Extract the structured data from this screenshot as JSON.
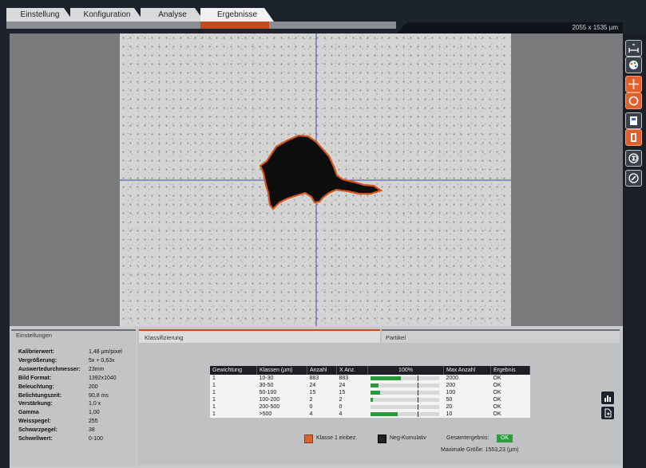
{
  "tabs": [
    {
      "label": "Einstellung"
    },
    {
      "label": "Konfiguration"
    },
    {
      "label": "Analyse"
    },
    {
      "label": "Ergebnisse"
    }
  ],
  "image_size": "2055 x 1535 µm",
  "toolbar": {
    "icons": [
      "measure-icon",
      "color-palette-icon",
      "crosshair-icon",
      "circle-icon",
      "export-image-icon",
      "film-icon",
      "3d-view-icon",
      "edit-icon"
    ]
  },
  "settings_panel": {
    "title": "Einstellungen",
    "rows": [
      {
        "key": "Kalibrierwert:",
        "value": "1,48 µm/pixel"
      },
      {
        "key": "Vergrößerung:",
        "value": "5x + 0,63x"
      },
      {
        "key": "Auswertedurchmesser:",
        "value": "23mm"
      },
      {
        "key": "Bild Format:",
        "value": "1392x1040"
      },
      {
        "key": "Beleuchtung:",
        "value": "200"
      },
      {
        "key": "Belichtungszeit:",
        "value": "90,8 ms"
      },
      {
        "key": "Verstärkung:",
        "value": "1,0 x"
      },
      {
        "key": "Gamma",
        "value": "1,00"
      },
      {
        "key": "Weisspegel:",
        "value": "255"
      },
      {
        "key": "Schwarzpegel:",
        "value": "38"
      },
      {
        "key": "Schwellwert:",
        "value": "0-100"
      }
    ]
  },
  "result_tabs": {
    "classification": "Klassifizierung",
    "particles": "Partikel"
  },
  "table": {
    "headers": [
      "Gewichtung",
      "Klassen (µm)",
      "Anzahl",
      "X Anz.",
      "100%",
      "Max Anzahl",
      "Ergebnis"
    ],
    "rows": [
      {
        "weight": "1",
        "class": "10-30",
        "count": "883",
        "xcount": "883",
        "fill": 0.45,
        "max": "2000",
        "result": "OK"
      },
      {
        "weight": "1",
        "class": "30-50",
        "count": "24",
        "xcount": "24",
        "fill": 0.12,
        "max": "200",
        "result": "OK"
      },
      {
        "weight": "1",
        "class": "50-100",
        "count": "15",
        "xcount": "15",
        "fill": 0.15,
        "max": "100",
        "result": "OK"
      },
      {
        "weight": "1",
        "class": "100-200",
        "count": "2",
        "xcount": "2",
        "fill": 0.04,
        "max": "50",
        "result": "OK"
      },
      {
        "weight": "1",
        "class": "200-500",
        "count": "0",
        "xcount": "0",
        "fill": 0.0,
        "max": "20",
        "result": "OK"
      },
      {
        "weight": "1",
        "class": ">500",
        "count": "4",
        "xcount": "4",
        "fill": 0.4,
        "max": "10",
        "result": "OK"
      }
    ]
  },
  "footer": {
    "class1_label": "Klasse 1 einbez.",
    "negcum_label": "Neg-Kumulativ",
    "total_label": "Gesamtergebnis:",
    "total_value": "OK",
    "max_size": "Maximale Größe: 1553,23 (µm)"
  },
  "colors": {
    "accent": "#c44a1f",
    "ok_green": "#2f9b3c",
    "bar_green": "#2b9a3b"
  }
}
